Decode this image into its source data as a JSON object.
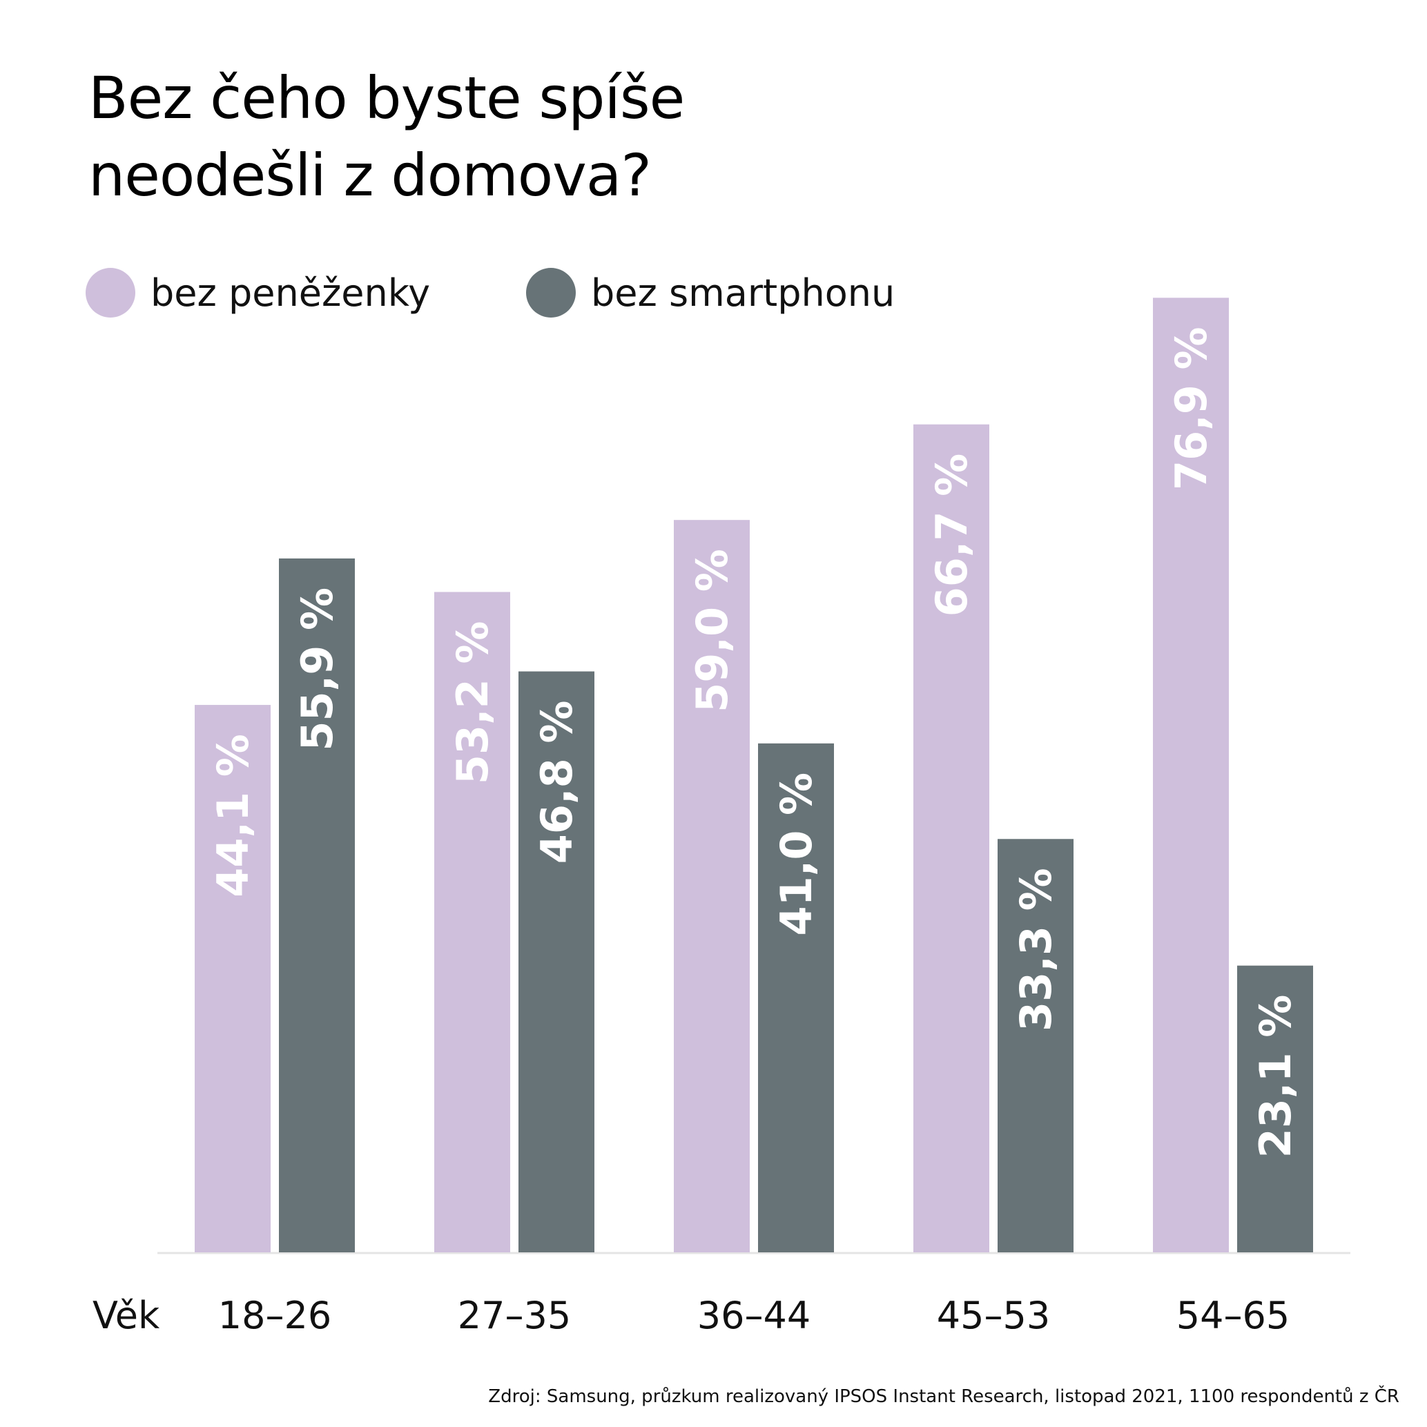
{
  "header": {
    "title_line1": "Bez čeho byste spíše",
    "title_line2": "neodešli z domova?"
  },
  "legend": {
    "items": [
      {
        "label": "bez peněženky",
        "color": "#cfbfdc"
      },
      {
        "label": "bez smartphonu",
        "color": "#677377"
      }
    ]
  },
  "footer": {
    "source": "Zdroj: Samsung, průzkum realizovaný IPSOS Instant Research, listopad 2021, 1100 respondentů z ČR"
  },
  "chart_data": {
    "type": "bar",
    "title": "Bez čeho byste spíše neodešli z domova?",
    "xlabel": "Věk",
    "ylabel": "",
    "categories": [
      "18–26",
      "27–35",
      "36–44",
      "45–53",
      "54–65"
    ],
    "series": [
      {
        "name": "bez peněženky",
        "color": "#cfbfdc",
        "values": [
          44.1,
          53.2,
          59.0,
          66.7,
          76.9
        ],
        "labels": [
          "44,1 %",
          "53,2 %",
          "59,0 %",
          "66,7 %",
          "76,9 %"
        ]
      },
      {
        "name": "bez smartphonu",
        "color": "#677377",
        "values": [
          55.9,
          46.8,
          41.0,
          33.3,
          23.1
        ],
        "labels": [
          "55,9 %",
          "46,8 %",
          "41,0 %",
          "33,3 %",
          "23,1 %"
        ]
      }
    ],
    "ylim": [
      0,
      100
    ],
    "grid": false,
    "legend_position": "top-left",
    "data_labels": "inside-top, rotated vertical"
  }
}
